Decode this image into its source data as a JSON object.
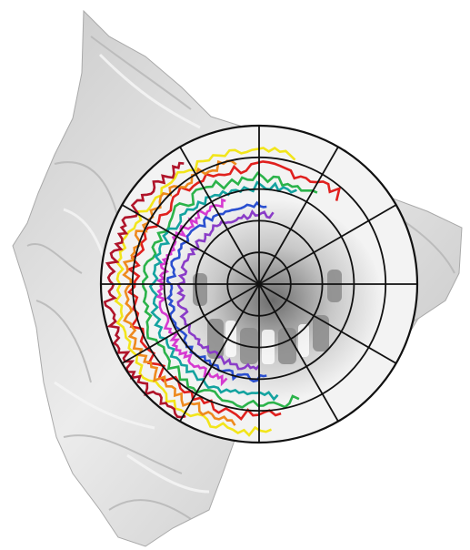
{
  "figure": {
    "background_color": "#ffffff",
    "surface_color": "#d9d9d9",
    "grid_color": "#111111",
    "polar_grid": {
      "ring_count": 5,
      "sector_count": 12
    },
    "contours": [
      {
        "name": "red-contour",
        "color": "#e0201e"
      },
      {
        "name": "yellow-contour",
        "color": "#f2e51b"
      },
      {
        "name": "orange-contour",
        "color": "#ee8a1e"
      },
      {
        "name": "green-contour",
        "color": "#2bb34a"
      },
      {
        "name": "teal-contour",
        "color": "#14a3a0"
      },
      {
        "name": "blue-contour",
        "color": "#2a4fd0"
      },
      {
        "name": "purple-contour",
        "color": "#8a3cc8"
      },
      {
        "name": "magenta-contour",
        "color": "#d63ad0"
      },
      {
        "name": "dark-red-contour",
        "color": "#b0142a"
      }
    ]
  }
}
